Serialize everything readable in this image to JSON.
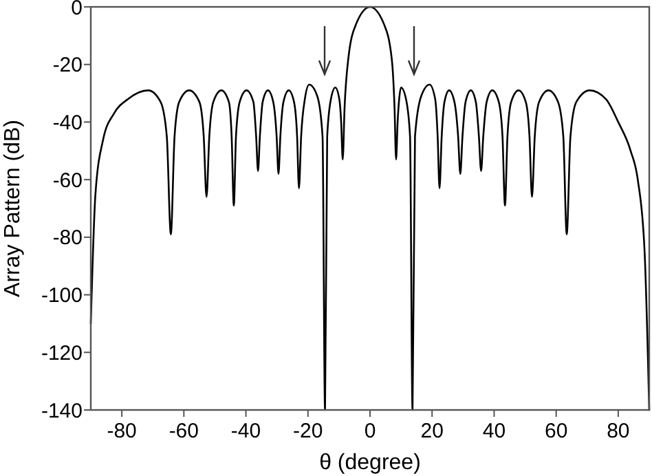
{
  "chart_data": {
    "type": "line",
    "xlabel": "θ (degree)",
    "ylabel": "Array Pattern (dB)",
    "xlim": [
      -90,
      90
    ],
    "xticks": [
      -80,
      -60,
      -40,
      -20,
      0,
      20,
      40,
      60,
      80
    ],
    "ylim": [
      -140,
      0
    ],
    "yticks": [
      -140,
      -120,
      -100,
      -80,
      -60,
      -40,
      -20,
      0
    ],
    "grid": false,
    "marker": "none",
    "line_style": "solid",
    "series": [
      {
        "color": "#000000",
        "x": [
          -90,
          -88.5,
          -86,
          -82.5,
          -78,
          -71.5,
          -67.5,
          -65.5,
          -64.2,
          -63,
          -61.5,
          -58.3,
          -55,
          -53.6,
          -52.7,
          -51.8,
          -50.5,
          -47.9,
          -45.5,
          -44.6,
          -43.9,
          -43.2,
          -42,
          -39.8,
          -37.6,
          -36.7,
          -36.1,
          -35.5,
          -34.6,
          -32.9,
          -31.2,
          -30.1,
          -29.5,
          -28.9,
          -27.9,
          -26.2,
          -24.5,
          -23.5,
          -22.9,
          -22.2,
          -21,
          -19.6,
          -17,
          -15.3,
          -14.5,
          -13.8,
          -12.6,
          -11.2,
          -9.9,
          -9.3,
          -8.8,
          -8.2,
          -7,
          -4.5,
          0,
          4.5,
          7,
          7.9,
          8.4,
          8.9,
          9.4,
          10,
          11.6,
          12.9,
          13.7,
          14.5,
          16.5,
          19.2,
          21,
          21.8,
          22.4,
          23.1,
          24,
          25.5,
          27.2,
          28.4,
          29.1,
          29.8,
          30.8,
          32.5,
          34.1,
          35.1,
          35.8,
          36.5,
          37.6,
          39.4,
          41.5,
          42.7,
          43.5,
          44.3,
          45.5,
          47.9,
          50.2,
          51.4,
          52.2,
          53.1,
          54.5,
          57.5,
          60.6,
          62.3,
          63.4,
          64.6,
          66.5,
          70.8,
          76,
          80,
          84,
          86.3,
          88.5,
          90
        ],
        "values": [
          -110,
          -65,
          -46,
          -37,
          -32,
          -29,
          -33,
          -45,
          -79,
          -45,
          -33,
          -29,
          -33,
          -45,
          -66,
          -45,
          -33,
          -29,
          -33,
          -45,
          -69,
          -45,
          -33,
          -29,
          -33,
          -45,
          -57,
          -45,
          -33,
          -29,
          -33,
          -45,
          -58,
          -45,
          -33,
          -29,
          -33,
          -45,
          -63,
          -45,
          -32,
          -27,
          -31,
          -45,
          -140,
          -45,
          -32,
          -28,
          -32,
          -40,
          -53,
          -35,
          -18,
          -6,
          0,
          -6,
          -18,
          -35,
          -53,
          -40,
          -32,
          -28,
          -32,
          -45,
          -140,
          -45,
          -31,
          -27,
          -32,
          -45,
          -63,
          -45,
          -33,
          -29,
          -33,
          -45,
          -58,
          -45,
          -33,
          -29,
          -33,
          -45,
          -57,
          -45,
          -33,
          -29,
          -33,
          -45,
          -69,
          -45,
          -33,
          -29,
          -33,
          -45,
          -66,
          -45,
          -33,
          -29,
          -33,
          -45,
          -79,
          -45,
          -33,
          -29,
          -32,
          -40,
          -50,
          -60,
          -85,
          -140
        ]
      }
    ]
  }
}
